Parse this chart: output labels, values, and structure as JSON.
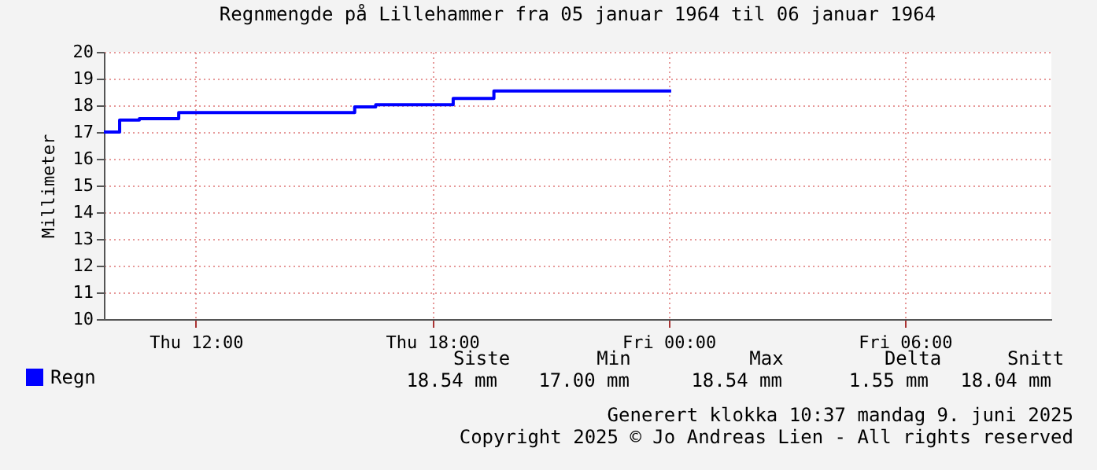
{
  "chart_data": {
    "type": "step",
    "title": "Regnmengde på Lillehammer fra 05 januar 1964 til 06 januar 1964",
    "ylabel": "Millimeter",
    "x": [
      "1964-01-05T09:40",
      "1964-01-05T10:04",
      "1964-01-05T10:34",
      "1964-01-05T11:34",
      "1964-01-05T16:02",
      "1964-01-05T16:34",
      "1964-01-05T18:32",
      "1964-01-05T19:34",
      "1964-01-06T00:04"
    ],
    "series": [
      {
        "name": "Regn",
        "color": "#0000ff",
        "values": [
          17.0,
          17.45,
          17.5,
          17.73,
          17.94,
          18.02,
          18.26,
          18.54,
          18.54
        ]
      }
    ],
    "xlim": [
      "1964-01-05T09:40",
      "1964-01-06T09:43"
    ],
    "xticks": [
      {
        "value": "1964-01-05T12:00",
        "label": "Thu 12:00"
      },
      {
        "value": "1964-01-05T18:00",
        "label": "Thu 18:00"
      },
      {
        "value": "1964-01-06T00:00",
        "label": "Fri 00:00"
      },
      {
        "value": "1964-01-06T06:00",
        "label": "Fri 06:00"
      }
    ],
    "ylim": [
      10,
      20
    ],
    "yticks": [
      10,
      11,
      12,
      13,
      14,
      15,
      16,
      17,
      18,
      19,
      20
    ],
    "grid": true,
    "legend": "bottom left",
    "annotations": [
      "Siste",
      "Min",
      "Max",
      "Delta",
      "Snitt",
      "18.54 mm",
      "17.00 mm",
      "18.54 mm",
      "1.55 mm",
      "18.04 mm",
      "Generert klokka 10:37 mandag 9. juni 2025",
      "Copyright 2025 © Jo Andreas Lien - All rights reserved"
    ]
  }
}
